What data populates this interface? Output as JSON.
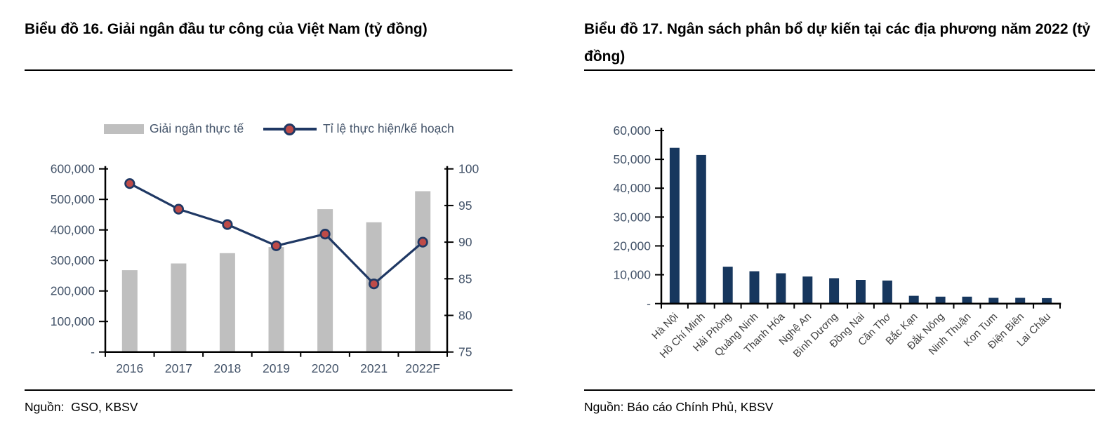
{
  "chart_data": [
    {
      "type": "bar+line",
      "chart_id": "Biểu đồ 16",
      "title": "Biểu đồ 16. Giải ngân đầu tư công của Việt Nam (tỷ đồng)",
      "categories": [
        "2016",
        "2017",
        "2018",
        "2019",
        "2020",
        "2021",
        "2022F"
      ],
      "series": [
        {
          "name": "Giải ngân thực tế",
          "type": "bar",
          "axis": "left",
          "color": "#BFBFBF",
          "values": [
            268000,
            290000,
            324000,
            344000,
            468000,
            425000,
            527000
          ]
        },
        {
          "name": "Tỉ lệ thực hiện/kế hoạch",
          "type": "line",
          "axis": "right",
          "color": "#1F3864",
          "marker_color": "#BE4B48",
          "values": [
            98,
            94.5,
            92.4,
            89.5,
            91.1,
            84.3,
            90
          ]
        }
      ],
      "left_axis": {
        "min": 0,
        "max": 600000,
        "step": 100000,
        "tick_labels": [
          "600,000",
          "500,000",
          "400,000",
          "300,000",
          "200,000",
          "100,000",
          "-"
        ]
      },
      "right_axis": {
        "min": 75,
        "max": 100,
        "step": 5,
        "tick_labels": [
          "100",
          "95",
          "90",
          "85",
          "80",
          "75"
        ]
      },
      "grid": false,
      "legend_position": "top",
      "source": "Nguồn:  GSO, KBSV"
    },
    {
      "type": "bar",
      "chart_id": "Biểu đồ 17",
      "title": "Biểu đồ 17. Ngân sách phân bổ dự kiến tại các địa phương năm 2022 (tỷ đồng)",
      "categories": [
        "Hà Nội",
        "Hồ Chí Minh",
        "Hải Phòng",
        "Quảng Ninh",
        "Thanh Hóa",
        "Nghệ An",
        "Bình Dương",
        "Đồng Nai",
        "Cần Thơ",
        "Bắc Kạn",
        "Đắk Nông",
        "Ninh Thuận",
        "Kon Tum",
        "Điện Biên",
        "Lai Châu"
      ],
      "values": [
        54000,
        51500,
        12800,
        11200,
        10500,
        9400,
        8800,
        8200,
        8000,
        2700,
        2400,
        2400,
        2000,
        2000,
        1900
      ],
      "bar_color": "#17375E",
      "y_axis": {
        "min": 0,
        "max": 60000,
        "step": 10000,
        "tick_labels": [
          "60,000",
          "50,000",
          "40,000",
          "30,000",
          "20,000",
          "10,000",
          "-"
        ]
      },
      "grid": false,
      "legend_position": "none",
      "source": "Nguồn: Báo cáo Chính Phủ, KBSV"
    }
  ],
  "colors": {
    "axis_line": "#000000",
    "tick_label": "#44546A",
    "category_label_rotated": "#404040",
    "bar_gray": "#BFBFBF",
    "line_navy": "#1F3864",
    "marker_red": "#BE4B48",
    "bar_navy": "#17375E"
  }
}
